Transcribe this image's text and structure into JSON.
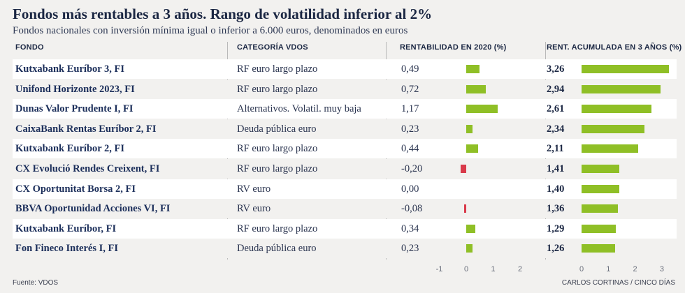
{
  "chart_data": {
    "type": "table",
    "title": "Fondos más rentables a 3 años. Rango de volatilidad inferior al 2%",
    "subtitle": "Fondos nacionales con inversión mínima igual o inferior a 6.000 euros, denominados en euros",
    "columns": {
      "fund": "FONDO",
      "category": "CATEGORÍA VDOS",
      "return_2020": "RENTABILIDAD EN 2020 (%)",
      "return_3y": "RENT. ACUMULADA EN 3 AÑOS  (%)"
    },
    "rows": [
      {
        "fund": "Kutxabank Euríbor 3, FI",
        "category": "RF euro largo plazo",
        "return_2020": 0.49,
        "return_2020_label": "0,49",
        "return_3y": 3.26,
        "return_3y_label": "3,26"
      },
      {
        "fund": "Unifond Horizonte 2023, FI",
        "category": "RF euro largo plazo",
        "return_2020": 0.72,
        "return_2020_label": "0,72",
        "return_3y": 2.94,
        "return_3y_label": "2,94"
      },
      {
        "fund": "Dunas Valor Prudente I, FI",
        "category": "Alternativos. Volatil. muy baja",
        "return_2020": 1.17,
        "return_2020_label": "1,17",
        "return_3y": 2.61,
        "return_3y_label": "2,61"
      },
      {
        "fund": "CaixaBank Rentas Euríbor 2, FI",
        "category": "Deuda pública euro",
        "return_2020": 0.23,
        "return_2020_label": "0,23",
        "return_3y": 2.34,
        "return_3y_label": "2,34"
      },
      {
        "fund": "Kutxabank Euríbor 2, FI",
        "category": "RF euro largo plazo",
        "return_2020": 0.44,
        "return_2020_label": "0,44",
        "return_3y": 2.11,
        "return_3y_label": "2,11"
      },
      {
        "fund": "CX Evolució Rendes Creixent, FI",
        "category": "RF euro largo plazo",
        "return_2020": -0.2,
        "return_2020_label": "-0,20",
        "return_3y": 1.41,
        "return_3y_label": "1,41"
      },
      {
        "fund": "CX Oportunitat Borsa 2, FI",
        "category": "RV euro",
        "return_2020": 0.0,
        "return_2020_label": "0,00",
        "return_3y": 1.4,
        "return_3y_label": "1,40"
      },
      {
        "fund": "BBVA Oportunidad Acciones VI, FI",
        "category": "RV euro",
        "return_2020": -0.08,
        "return_2020_label": "-0,08",
        "return_3y": 1.36,
        "return_3y_label": "1,36"
      },
      {
        "fund": "Kutxabank Euríbor, FI",
        "category": "RF euro largo plazo",
        "return_2020": 0.34,
        "return_2020_label": "0,34",
        "return_3y": 1.29,
        "return_3y_label": "1,29"
      },
      {
        "fund": "Fon Fineco Interés I, FI",
        "category": "Deuda pública euro",
        "return_2020": 0.23,
        "return_2020_label": "0,23",
        "return_3y": 1.26,
        "return_3y_label": "1,26"
      }
    ],
    "axis_2020": {
      "range": [
        -1,
        2
      ],
      "ticks": [
        -1,
        0,
        1,
        2
      ],
      "tick_labels": [
        "-1",
        "0",
        "1",
        "2"
      ]
    },
    "axis_3y": {
      "range": [
        0,
        3
      ],
      "ticks": [
        0,
        1,
        2,
        3
      ],
      "tick_labels": [
        "0",
        "1",
        "2",
        "3"
      ]
    },
    "colors": {
      "positive": "#8fbf26",
      "negative": "#d93a4a",
      "grid": "#b9b9b9"
    }
  },
  "footer": {
    "source": "Fuente: VDOS",
    "credit": "CARLOS CORTINAS / CINCO DÍAS"
  }
}
